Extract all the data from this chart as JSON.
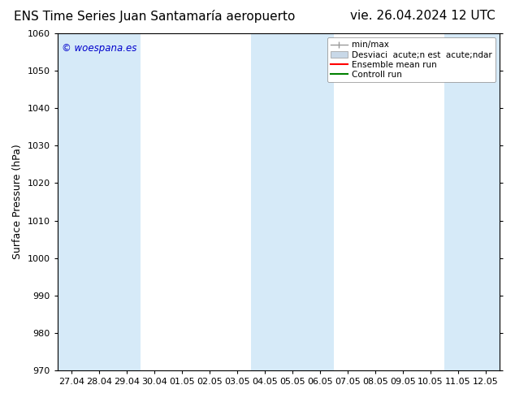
{
  "title_left": "ENS Time Series Juan Santamaría aeropuerto",
  "title_right": "vie. 26.04.2024 12 UTC",
  "ylabel": "Surface Pressure (hPa)",
  "ylim": [
    970,
    1060
  ],
  "yticks": [
    970,
    980,
    990,
    1000,
    1010,
    1020,
    1030,
    1040,
    1050,
    1060
  ],
  "xtick_labels": [
    "27.04",
    "28.04",
    "29.04",
    "30.04",
    "01.05",
    "02.05",
    "03.05",
    "04.05",
    "05.05",
    "06.05",
    "07.05",
    "08.05",
    "09.05",
    "10.05",
    "11.05",
    "12.05"
  ],
  "n_xticks": 16,
  "blue_band_color": "#d6eaf8",
  "blue_band_indices": [
    0,
    1,
    2,
    7,
    8,
    9,
    14,
    15
  ],
  "watermark": "© woespana.es",
  "watermark_color": "#0000cc",
  "legend_label_minmax": "min/max",
  "legend_label_desv": "Desviaci  acute;n est  acute;ndar",
  "legend_label_ens": "Ensemble mean run",
  "legend_label_ctrl": "Controll run",
  "color_minmax_line": "#999999",
  "color_desv_fill": "#c8d8e8",
  "color_ens": "#ff0000",
  "color_ctrl": "#008000",
  "bg_color": "#ffffff",
  "title_fontsize": 11,
  "tick_fontsize": 8,
  "ylabel_fontsize": 9,
  "legend_fontsize": 7.5
}
